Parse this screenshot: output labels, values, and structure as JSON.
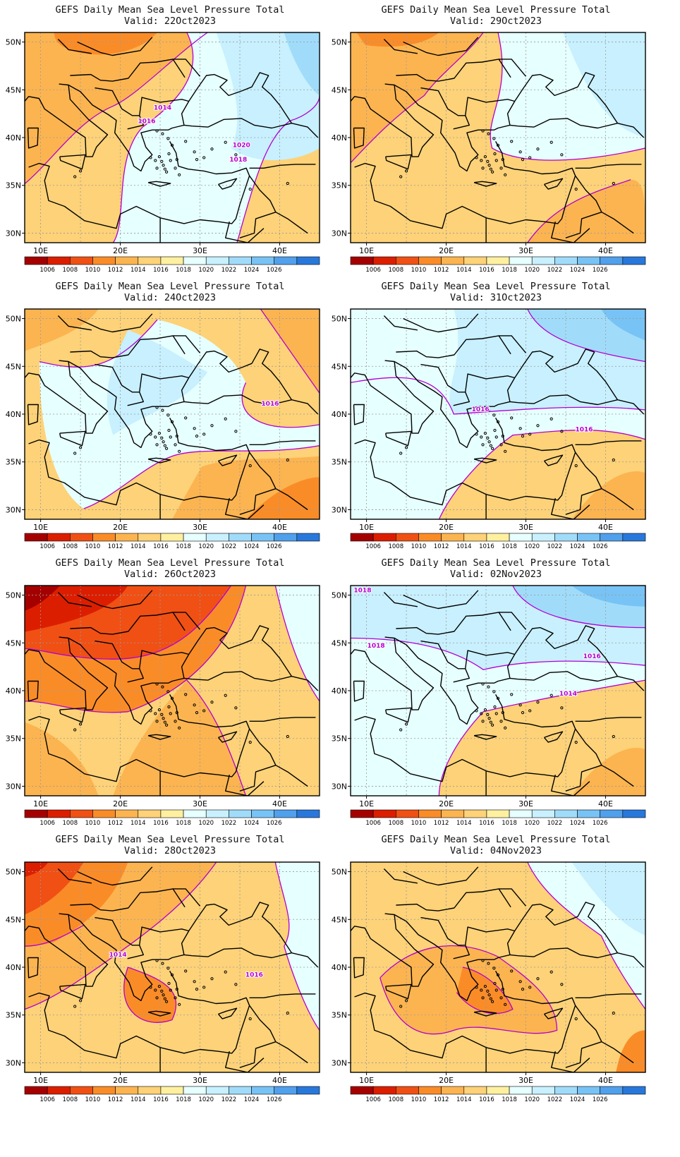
{
  "title": "GEFS Daily Mean Sea Level Pressure Total",
  "valid_prefix": "Valid:",
  "panels": [
    {
      "date": "22Oct2023",
      "contour_labels": [
        "1014",
        "1016",
        "1020",
        "1018"
      ]
    },
    {
      "date": "29Oct2023",
      "contour_labels": []
    },
    {
      "date": "24Oct2023",
      "contour_labels": [
        "1016"
      ]
    },
    {
      "date": "31Oct2023",
      "contour_labels": [
        "1016",
        "1016"
      ]
    },
    {
      "date": "26Oct2023",
      "contour_labels": []
    },
    {
      "date": "02Nov2023",
      "contour_labels": [
        "1018",
        "1018",
        "1016",
        "1014"
      ]
    },
    {
      "date": "28Oct2023",
      "contour_labels": [
        "1014",
        "1016"
      ]
    },
    {
      "date": "04Nov2023",
      "contour_labels": []
    }
  ],
  "axes": {
    "x_ticks": [
      "10E",
      "20E",
      "30E",
      "40E"
    ],
    "y_ticks": [
      "50N",
      "45N",
      "40N",
      "35N",
      "30N"
    ]
  },
  "colorbar": {
    "labels": [
      "1006",
      "1008",
      "1010",
      "1012",
      "1014",
      "1016",
      "1018",
      "1020",
      "1022",
      "1024",
      "1026"
    ],
    "colors": [
      "#a50000",
      "#dc1e00",
      "#f05014",
      "#fa8c28",
      "#fcb450",
      "#fdd278",
      "#fff0a0",
      "#e6ffff",
      "#c8f0ff",
      "#a0dcfa",
      "#78c3f5",
      "#50a0ec",
      "#2878dc"
    ]
  },
  "contour_color": "#b400d2"
}
